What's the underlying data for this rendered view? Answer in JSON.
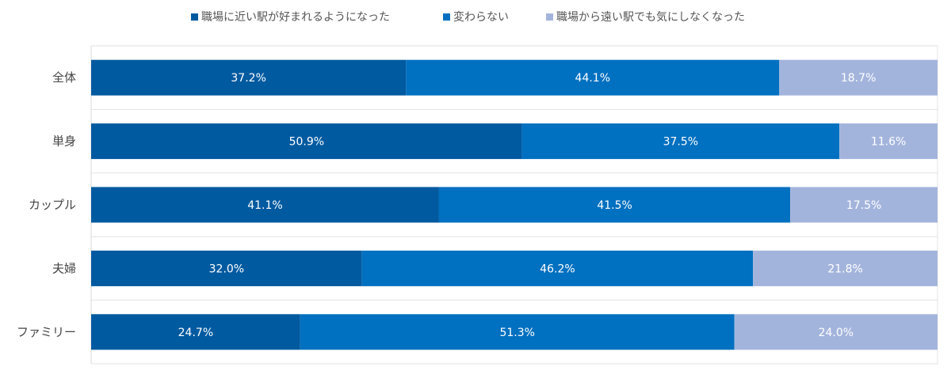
{
  "chart_data": {
    "type": "bar",
    "orientation": "horizontal",
    "stacked": true,
    "percent_stacked": true,
    "categories": [
      "全体",
      "単身",
      "カップル",
      "夫婦",
      "ファミリー"
    ],
    "series": [
      {
        "name": "職場に近い駅が好まれるようになった",
        "color": "#005aa0",
        "values": [
          37.2,
          50.9,
          41.1,
          32.0,
          24.7
        ],
        "labels": [
          "37.2%",
          "50.9%",
          "41.1%",
          "32.0%",
          "24.7%"
        ]
      },
      {
        "name": "変わらない",
        "color": "#0070c0",
        "values": [
          44.1,
          37.5,
          41.5,
          46.2,
          51.3
        ],
        "labels": [
          "44.1%",
          "37.5%",
          "41.5%",
          "46.2%",
          "51.3%"
        ]
      },
      {
        "name": "職場から遠い駅でも気にしなくなった",
        "color": "#a3b4dc",
        "values": [
          18.7,
          11.6,
          17.5,
          21.8,
          24.0
        ],
        "labels": [
          "18.7%",
          "11.6%",
          "17.5%",
          "21.8%",
          "24.0%"
        ]
      }
    ],
    "xlim": [
      0,
      100
    ],
    "legend_position": "top",
    "grid": true
  }
}
